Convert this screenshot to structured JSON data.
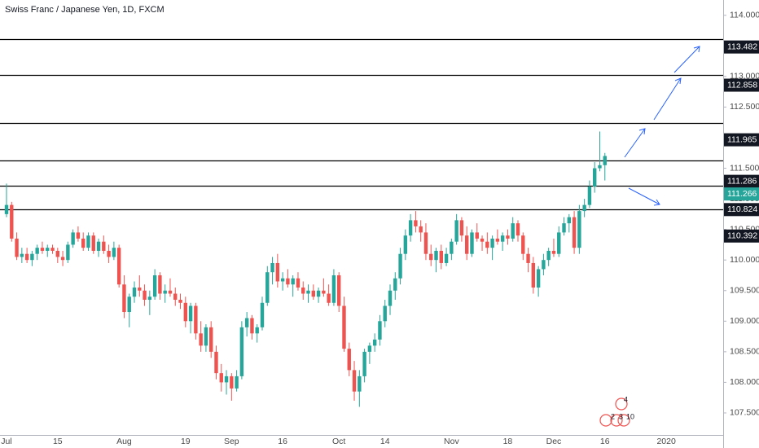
{
  "chart_data": {
    "type": "candlestick",
    "title": "Swiss Franc / Japanese Yen, 1D, FXCM",
    "up_color": "#26a69a",
    "down_color": "#ef5350",
    "ylim": [
      107.14,
      114.25
    ],
    "yticks": [
      {
        "value": 114,
        "label": "114.000"
      },
      {
        "value": 113.5,
        "label": "113.500"
      },
      {
        "value": 113,
        "label": "113.000"
      },
      {
        "value": 112.5,
        "label": "112.500"
      },
      {
        "value": 112,
        "label": "112.000"
      },
      {
        "value": 111.5,
        "label": "111.500"
      },
      {
        "value": 111,
        "label": "111.000"
      },
      {
        "value": 110.5,
        "label": "110.500"
      },
      {
        "value": 110,
        "label": "110.000"
      },
      {
        "value": 109.5,
        "label": "109.500"
      },
      {
        "value": 109,
        "label": "109.000"
      },
      {
        "value": 108.5,
        "label": "108.500"
      },
      {
        "value": 108,
        "label": "108.000"
      },
      {
        "value": 107.5,
        "label": "107.500"
      }
    ],
    "time_labels": [
      {
        "index": 0,
        "label": "Jul"
      },
      {
        "index": 10,
        "label": "15"
      },
      {
        "index": 23,
        "label": "Aug"
      },
      {
        "index": 35,
        "label": "19"
      },
      {
        "index": 44,
        "label": "Sep"
      },
      {
        "index": 54,
        "label": "16"
      },
      {
        "index": 65,
        "label": "Oct"
      },
      {
        "index": 74,
        "label": "14"
      },
      {
        "index": 87,
        "label": "Nov"
      },
      {
        "index": 98,
        "label": "18"
      },
      {
        "index": 107,
        "label": "Dec"
      },
      {
        "index": 117,
        "label": "16"
      },
      {
        "index": 129,
        "label": "2020"
      }
    ],
    "levels": [
      113.61,
      113.03,
      112.24,
      111.63,
      111.22,
      110.83
    ],
    "price_labels": [
      113.482,
      112.858,
      111.965,
      111.286,
      110.824,
      110.392
    ],
    "current_price": 111.266,
    "events": [
      "2",
      "3",
      "10",
      "4"
    ],
    "candles": [
      [
        110.75,
        111.25,
        110.7,
        110.9
      ],
      [
        110.9,
        110.95,
        110.3,
        110.35
      ],
      [
        110.35,
        110.45,
        110.0,
        110.05
      ],
      [
        110.05,
        110.2,
        109.95,
        110.1
      ],
      [
        110.1,
        110.2,
        109.95,
        110.0
      ],
      [
        110.0,
        110.15,
        109.9,
        110.1
      ],
      [
        110.1,
        110.25,
        110.0,
        110.2
      ],
      [
        110.2,
        110.3,
        110.1,
        110.15
      ],
      [
        110.15,
        110.25,
        110.05,
        110.2
      ],
      [
        110.2,
        110.25,
        110.1,
        110.15
      ],
      [
        110.15,
        110.2,
        109.95,
        110.05
      ],
      [
        110.05,
        110.15,
        109.9,
        110.0
      ],
      [
        110.0,
        110.3,
        109.95,
        110.25
      ],
      [
        110.25,
        110.5,
        110.2,
        110.45
      ],
      [
        110.45,
        110.55,
        110.3,
        110.35
      ],
      [
        110.35,
        110.45,
        110.15,
        110.2
      ],
      [
        110.2,
        110.45,
        110.15,
        110.4
      ],
      [
        110.4,
        110.45,
        110.1,
        110.15
      ],
      [
        110.15,
        110.35,
        110.05,
        110.3
      ],
      [
        110.3,
        110.4,
        110.1,
        110.15
      ],
      [
        110.15,
        110.25,
        109.95,
        110.05
      ],
      [
        110.05,
        110.3,
        110.0,
        110.2
      ],
      [
        110.2,
        110.25,
        109.55,
        109.6
      ],
      [
        109.6,
        109.75,
        109.05,
        109.15
      ],
      [
        109.15,
        109.45,
        108.9,
        109.4
      ],
      [
        109.4,
        109.65,
        109.3,
        109.55
      ],
      [
        109.55,
        109.75,
        109.4,
        109.5
      ],
      [
        109.5,
        109.6,
        109.25,
        109.35
      ],
      [
        109.35,
        109.5,
        109.1,
        109.4
      ],
      [
        109.4,
        109.85,
        109.35,
        109.75
      ],
      [
        109.75,
        109.8,
        109.35,
        109.45
      ],
      [
        109.45,
        109.6,
        109.3,
        109.5
      ],
      [
        109.5,
        109.7,
        109.4,
        109.45
      ],
      [
        109.45,
        109.55,
        109.25,
        109.35
      ],
      [
        109.35,
        109.45,
        109.2,
        109.3
      ],
      [
        109.3,
        109.4,
        108.9,
        109.0
      ],
      [
        109.0,
        109.3,
        108.8,
        109.25
      ],
      [
        109.25,
        109.3,
        108.7,
        108.8
      ],
      [
        108.8,
        109.0,
        108.5,
        108.6
      ],
      [
        108.6,
        108.95,
        108.5,
        108.9
      ],
      [
        108.9,
        109.0,
        108.4,
        108.5
      ],
      [
        108.5,
        108.6,
        108.05,
        108.15
      ],
      [
        108.15,
        108.3,
        107.85,
        108.0
      ],
      [
        108.0,
        108.2,
        107.8,
        108.1
      ],
      [
        108.1,
        108.15,
        107.7,
        107.9
      ],
      [
        107.9,
        108.2,
        107.85,
        108.1
      ],
      [
        108.1,
        109.0,
        108.05,
        108.9
      ],
      [
        108.9,
        109.15,
        108.75,
        109.05
      ],
      [
        109.05,
        109.1,
        108.7,
        108.8
      ],
      [
        108.8,
        108.95,
        108.65,
        108.9
      ],
      [
        108.9,
        109.4,
        108.85,
        109.3
      ],
      [
        109.3,
        109.9,
        109.25,
        109.8
      ],
      [
        109.8,
        110.05,
        109.6,
        109.95
      ],
      [
        109.95,
        110.1,
        109.55,
        109.65
      ],
      [
        109.65,
        109.8,
        109.5,
        109.7
      ],
      [
        109.7,
        109.85,
        109.55,
        109.6
      ],
      [
        109.6,
        109.75,
        109.4,
        109.7
      ],
      [
        109.7,
        109.8,
        109.5,
        109.55
      ],
      [
        109.55,
        109.65,
        109.35,
        109.45
      ],
      [
        109.45,
        109.6,
        109.3,
        109.5
      ],
      [
        109.5,
        109.6,
        109.35,
        109.4
      ],
      [
        109.4,
        109.55,
        109.3,
        109.5
      ],
      [
        109.5,
        109.7,
        109.4,
        109.45
      ],
      [
        109.45,
        109.6,
        109.25,
        109.3
      ],
      [
        109.3,
        109.85,
        109.25,
        109.75
      ],
      [
        109.75,
        109.8,
        109.15,
        109.25
      ],
      [
        109.25,
        109.4,
        108.5,
        108.55
      ],
      [
        108.55,
        108.65,
        108.1,
        108.2
      ],
      [
        108.2,
        108.35,
        107.7,
        107.85
      ],
      [
        107.85,
        108.2,
        107.6,
        108.1
      ],
      [
        108.1,
        108.55,
        108.0,
        108.5
      ],
      [
        108.5,
        108.65,
        108.3,
        108.6
      ],
      [
        108.6,
        108.8,
        108.5,
        108.7
      ],
      [
        108.7,
        109.1,
        108.6,
        109.0
      ],
      [
        109.0,
        109.35,
        108.9,
        109.25
      ],
      [
        109.25,
        109.6,
        109.1,
        109.5
      ],
      [
        109.5,
        109.8,
        109.35,
        109.7
      ],
      [
        109.7,
        110.2,
        109.6,
        110.1
      ],
      [
        110.1,
        110.5,
        110.0,
        110.4
      ],
      [
        110.4,
        110.75,
        110.3,
        110.65
      ],
      [
        110.65,
        110.8,
        110.45,
        110.55
      ],
      [
        110.55,
        110.65,
        110.3,
        110.45
      ],
      [
        110.45,
        110.6,
        110.0,
        110.1
      ],
      [
        110.1,
        110.25,
        109.9,
        110.0
      ],
      [
        110.0,
        110.2,
        109.8,
        110.15
      ],
      [
        110.15,
        110.25,
        109.85,
        109.95
      ],
      [
        109.95,
        110.2,
        109.9,
        110.1
      ],
      [
        110.1,
        110.35,
        110.0,
        110.3
      ],
      [
        110.3,
        110.75,
        110.25,
        110.65
      ],
      [
        110.65,
        110.7,
        110.3,
        110.4
      ],
      [
        110.4,
        110.55,
        110.0,
        110.1
      ],
      [
        110.1,
        110.5,
        110.05,
        110.45
      ],
      [
        110.45,
        110.6,
        110.3,
        110.35
      ],
      [
        110.35,
        110.4,
        110.15,
        110.3
      ],
      [
        110.3,
        110.45,
        110.1,
        110.2
      ],
      [
        110.2,
        110.4,
        110.0,
        110.35
      ],
      [
        110.35,
        110.5,
        110.25,
        110.3
      ],
      [
        110.3,
        110.45,
        110.15,
        110.4
      ],
      [
        110.4,
        110.5,
        110.25,
        110.35
      ],
      [
        110.35,
        110.7,
        110.3,
        110.6
      ],
      [
        110.6,
        110.65,
        110.3,
        110.4
      ],
      [
        110.4,
        110.45,
        110.0,
        110.1
      ],
      [
        110.1,
        110.2,
        109.8,
        109.95
      ],
      [
        109.95,
        110.05,
        109.45,
        109.55
      ],
      [
        109.55,
        109.9,
        109.4,
        109.85
      ],
      [
        109.85,
        110.1,
        109.75,
        110.0
      ],
      [
        110.0,
        110.2,
        109.9,
        110.15
      ],
      [
        110.15,
        110.35,
        110.05,
        110.1
      ],
      [
        110.1,
        110.55,
        110.05,
        110.45
      ],
      [
        110.45,
        110.7,
        110.4,
        110.6
      ],
      [
        110.6,
        110.75,
        110.45,
        110.7
      ],
      [
        110.7,
        110.8,
        110.1,
        110.2
      ],
      [
        110.2,
        110.9,
        110.1,
        110.8
      ],
      [
        110.8,
        111.0,
        110.7,
        110.9
      ],
      [
        110.9,
        111.3,
        110.85,
        111.2
      ],
      [
        111.2,
        111.6,
        111.1,
        111.5
      ],
      [
        111.5,
        112.1,
        111.45,
        111.55
      ],
      [
        111.55,
        111.75,
        111.3,
        111.7
      ]
    ]
  }
}
